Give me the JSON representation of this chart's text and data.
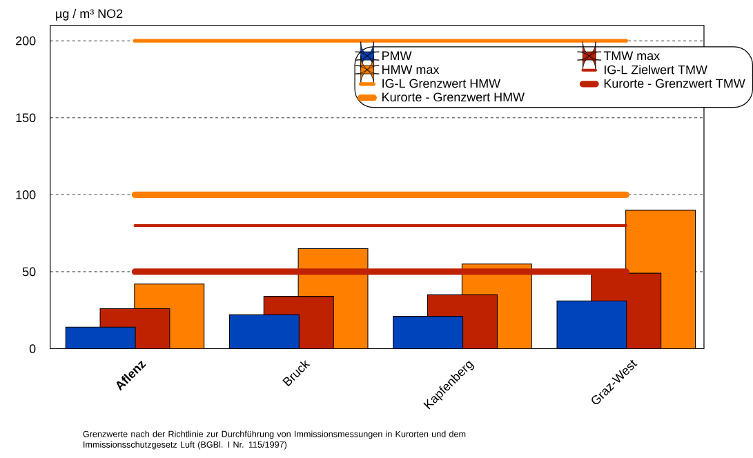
{
  "chart_data": {
    "type": "bar",
    "ylabel": "µg / m³ NO2",
    "categories": [
      "**Aflenz**",
      "Bruck",
      "Kapfenberg",
      "Graz-West"
    ],
    "series": [
      {
        "name": "PMW",
        "color": "#0044bb",
        "values": [
          14,
          22,
          21,
          31
        ]
      },
      {
        "name": "TMW max",
        "color": "#bf2200",
        "values": [
          26,
          34,
          35,
          49
        ]
      },
      {
        "name": "HMW max",
        "color": "#ff8000",
        "values": [
          42,
          65,
          55,
          90
        ]
      }
    ],
    "ref_lines": [
      {
        "axis": "y",
        "value": 80,
        "label": "IG-L Zielwert TMW",
        "color": "#bf2200"
      },
      {
        "axis": "y",
        "value": 200,
        "label": "IG-L Grenzwert HMW",
        "color": "#ff8000"
      },
      {
        "axis": "y",
        "value": 50,
        "label": "Kurorte - Grenzwert TMW",
        "color": "#bf2200"
      },
      {
        "axis": "y",
        "value": 100,
        "label": "Kurorte - Grenzwert HMW",
        "color": "#ff8000"
      }
    ],
    "ylim": [
      0,
      210
    ],
    "yticks": [
      0,
      50,
      100,
      150,
      200
    ],
    "grid": "y",
    "legend": "top right",
    "annotations": [
      "Grenzwerte nach der Richtlinie zur Durchführung von Immissionsmessungen in Kurorten und dem Immissionsschutzgesetz Luft (BGBl. I Nr. 115/1997)"
    ]
  }
}
